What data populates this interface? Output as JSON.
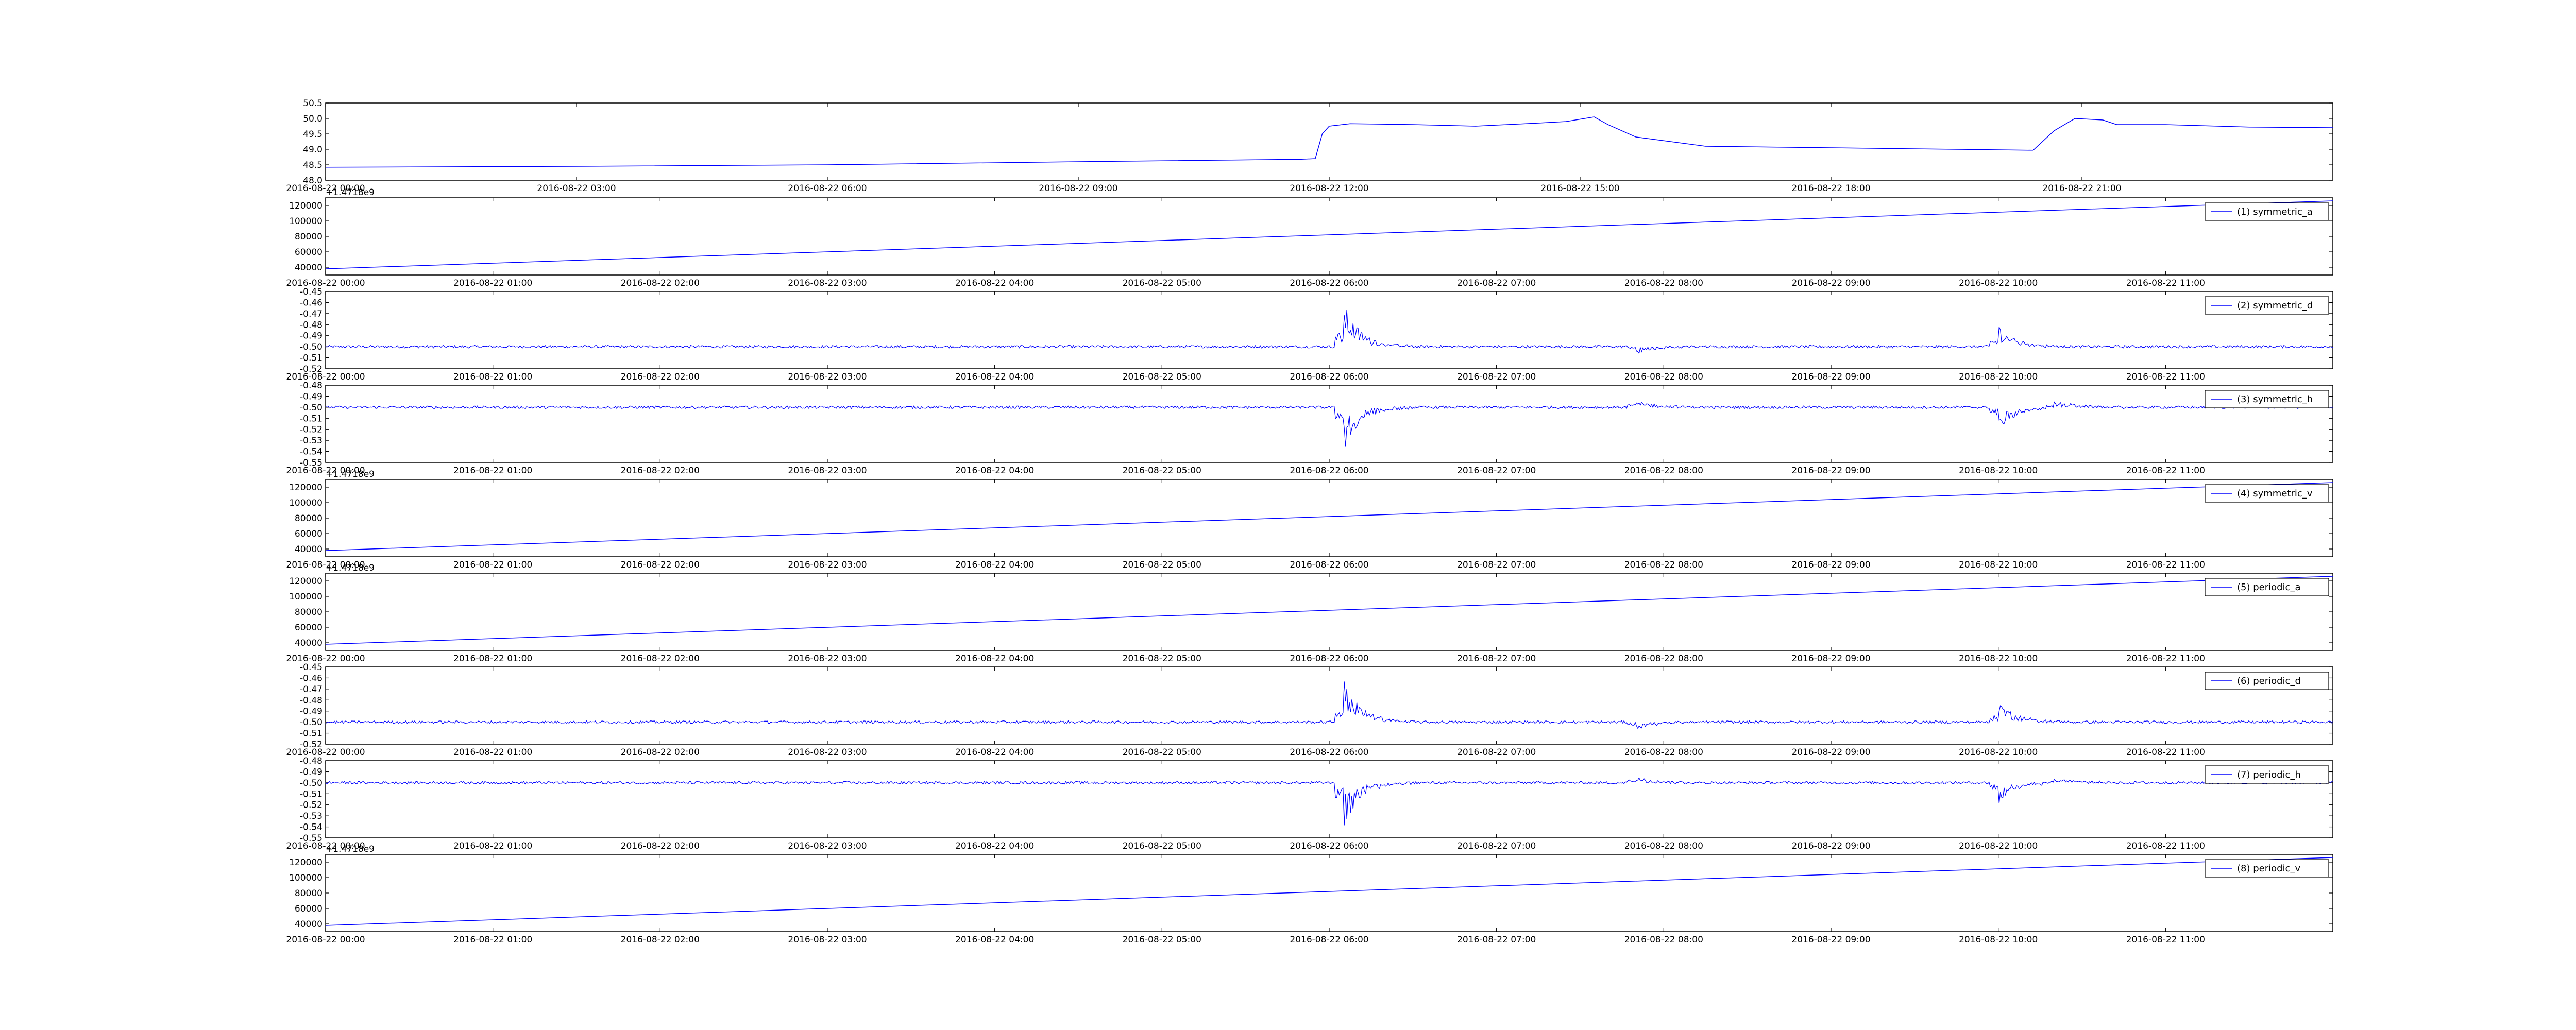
{
  "chart_data": [
    {
      "type": "line",
      "x_axis": {
        "type": "time",
        "range": [
          "2016-08-22 00:00",
          "2016-08-23 00:00"
        ],
        "ticks": [
          "2016-08-22 00:00",
          "2016-08-22 03:00",
          "2016-08-22 06:00",
          "2016-08-22 09:00",
          "2016-08-22 12:00",
          "2016-08-22 15:00",
          "2016-08-22 18:00",
          "2016-08-22 21:00"
        ]
      },
      "ylim": [
        48.0,
        50.5
      ],
      "yticks": [
        "48.0",
        "48.5",
        "49.0",
        "49.5",
        "50.0",
        "50.5"
      ],
      "color": "#0000ff",
      "legend": "",
      "series": [
        {
          "points": [
            [
              "2016-08-22 00:00",
              48.42
            ],
            [
              "2016-08-22 03:00",
              48.45
            ],
            [
              "2016-08-22 06:00",
              48.5
            ],
            [
              "2016-08-22 09:00",
              48.6
            ],
            [
              "2016-08-22 11:40",
              48.68
            ],
            [
              "2016-08-22 11:50",
              48.7
            ],
            [
              "2016-08-22 11:55",
              49.5
            ],
            [
              "2016-08-22 12:00",
              49.75
            ],
            [
              "2016-08-22 12:15",
              49.83
            ],
            [
              "2016-08-22 13:00",
              49.8
            ],
            [
              "2016-08-22 13:45",
              49.75
            ],
            [
              "2016-08-22 14:30",
              49.85
            ],
            [
              "2016-08-22 14:50",
              49.9
            ],
            [
              "2016-08-22 15:10",
              50.05
            ],
            [
              "2016-08-22 15:20",
              49.8
            ],
            [
              "2016-08-22 15:40",
              49.4
            ],
            [
              "2016-08-22 16:30",
              49.1
            ],
            [
              "2016-08-22 18:00",
              49.05
            ],
            [
              "2016-08-22 19:30",
              49.0
            ],
            [
              "2016-08-22 20:25",
              48.97
            ],
            [
              "2016-08-22 20:40",
              49.6
            ],
            [
              "2016-08-22 20:55",
              50.0
            ],
            [
              "2016-08-22 21:15",
              49.95
            ],
            [
              "2016-08-22 21:25",
              49.8
            ],
            [
              "2016-08-22 22:00",
              49.8
            ],
            [
              "2016-08-22 23:00",
              49.72
            ],
            [
              "2016-08-23 00:00",
              49.7
            ]
          ]
        }
      ]
    },
    {
      "type": "line",
      "x_axis": {
        "type": "time",
        "range": [
          "2016-08-22 00:00",
          "2016-08-22 12:00"
        ],
        "ticks": [
          "2016-08-22 00:00",
          "2016-08-22 01:00",
          "2016-08-22 02:00",
          "2016-08-22 03:00",
          "2016-08-22 04:00",
          "2016-08-22 05:00",
          "2016-08-22 06:00",
          "2016-08-22 07:00",
          "2016-08-22 08:00",
          "2016-08-22 09:00",
          "2016-08-22 10:00",
          "2016-08-22 11:00"
        ]
      },
      "axis_offset": "+1.4718e9",
      "ylim": [
        30000,
        130000
      ],
      "yticks": [
        "40000",
        "60000",
        "80000",
        "100000",
        "120000"
      ],
      "color": "#0000ff",
      "legend": "(1) symmetric_a",
      "series": [
        {
          "name": "(1) symmetric_a",
          "points": [
            [
              "2016-08-22 00:00",
              38000
            ],
            [
              "2016-08-22 12:00",
              126000
            ]
          ]
        }
      ]
    },
    {
      "type": "line",
      "x_axis": {
        "type": "time",
        "range": [
          "2016-08-22 00:00",
          "2016-08-22 12:00"
        ],
        "ticks": [
          "2016-08-22 00:00",
          "2016-08-22 01:00",
          "2016-08-22 02:00",
          "2016-08-22 03:00",
          "2016-08-22 04:00",
          "2016-08-22 05:00",
          "2016-08-22 06:00",
          "2016-08-22 07:00",
          "2016-08-22 08:00",
          "2016-08-22 09:00",
          "2016-08-22 10:00",
          "2016-08-22 11:00"
        ]
      },
      "ylim": [
        -0.52,
        -0.45
      ],
      "yticks": [
        "-0.52",
        "-0.51",
        "-0.50",
        "-0.49",
        "-0.48",
        "-0.47",
        "-0.46",
        "-0.45"
      ],
      "color": "#0000ff",
      "legend": "(2) symmetric_d",
      "series": [
        {
          "name": "(2) symmetric_d",
          "baseline": -0.5,
          "noise": 0.0012,
          "bursts": [
            {
              "at": "2016-08-22 06:05",
              "peak": -0.458,
              "dir": 1
            },
            {
              "at": "2016-08-22 07:50",
              "peak": -0.507,
              "dir": -1
            },
            {
              "at": "2016-08-22 10:00",
              "peak": -0.479,
              "dir": 1
            }
          ]
        }
      ]
    },
    {
      "type": "line",
      "x_axis": {
        "type": "time",
        "range": [
          "2016-08-22 00:00",
          "2016-08-22 12:00"
        ],
        "ticks": [
          "2016-08-22 00:00",
          "2016-08-22 01:00",
          "2016-08-22 02:00",
          "2016-08-22 03:00",
          "2016-08-22 04:00",
          "2016-08-22 05:00",
          "2016-08-22 06:00",
          "2016-08-22 07:00",
          "2016-08-22 08:00",
          "2016-08-22 09:00",
          "2016-08-22 10:00",
          "2016-08-22 11:00"
        ]
      },
      "ylim": [
        -0.55,
        -0.48
      ],
      "yticks": [
        "-0.55",
        "-0.54",
        "-0.53",
        "-0.52",
        "-0.51",
        "-0.50",
        "-0.49",
        "-0.48"
      ],
      "color": "#0000ff",
      "legend": "(3) symmetric_h",
      "series": [
        {
          "name": "(3) symmetric_h",
          "baseline": -0.5,
          "noise": 0.0012,
          "bursts": [
            {
              "at": "2016-08-22 06:05",
              "peak": -0.543,
              "dir": -1
            },
            {
              "at": "2016-08-22 07:50",
              "peak": -0.493,
              "dir": 1
            },
            {
              "at": "2016-08-22 10:00",
              "peak": -0.522,
              "dir": -1
            },
            {
              "at": "2016-08-22 10:20",
              "peak": -0.493,
              "dir": 1
            }
          ]
        }
      ]
    },
    {
      "type": "line",
      "x_axis": {
        "type": "time",
        "range": [
          "2016-08-22 00:00",
          "2016-08-22 12:00"
        ],
        "ticks": [
          "2016-08-22 00:00",
          "2016-08-22 01:00",
          "2016-08-22 02:00",
          "2016-08-22 03:00",
          "2016-08-22 04:00",
          "2016-08-22 05:00",
          "2016-08-22 06:00",
          "2016-08-22 07:00",
          "2016-08-22 08:00",
          "2016-08-22 09:00",
          "2016-08-22 10:00",
          "2016-08-22 11:00"
        ]
      },
      "axis_offset": "+1.4718e9",
      "ylim": [
        30000,
        130000
      ],
      "yticks": [
        "40000",
        "60000",
        "80000",
        "100000",
        "120000"
      ],
      "color": "#0000ff",
      "legend": "(4) symmetric_v",
      "series": [
        {
          "name": "(4) symmetric_v",
          "points": [
            [
              "2016-08-22 00:00",
              38000
            ],
            [
              "2016-08-22 12:00",
              126000
            ]
          ]
        }
      ]
    },
    {
      "type": "line",
      "x_axis": {
        "type": "time",
        "range": [
          "2016-08-22 00:00",
          "2016-08-22 12:00"
        ],
        "ticks": [
          "2016-08-22 00:00",
          "2016-08-22 01:00",
          "2016-08-22 02:00",
          "2016-08-22 03:00",
          "2016-08-22 04:00",
          "2016-08-22 05:00",
          "2016-08-22 06:00",
          "2016-08-22 07:00",
          "2016-08-22 08:00",
          "2016-08-22 09:00",
          "2016-08-22 10:00",
          "2016-08-22 11:00"
        ]
      },
      "axis_offset": "+1.4718e9",
      "ylim": [
        30000,
        130000
      ],
      "yticks": [
        "40000",
        "60000",
        "80000",
        "100000",
        "120000"
      ],
      "color": "#0000ff",
      "legend": "(5) periodic_a",
      "series": [
        {
          "name": "(5) periodic_a",
          "points": [
            [
              "2016-08-22 00:00",
              38000
            ],
            [
              "2016-08-22 12:00",
              126000
            ]
          ]
        }
      ]
    },
    {
      "type": "line",
      "x_axis": {
        "type": "time",
        "range": [
          "2016-08-22 00:00",
          "2016-08-22 12:00"
        ],
        "ticks": [
          "2016-08-22 00:00",
          "2016-08-22 01:00",
          "2016-08-22 02:00",
          "2016-08-22 03:00",
          "2016-08-22 04:00",
          "2016-08-22 05:00",
          "2016-08-22 06:00",
          "2016-08-22 07:00",
          "2016-08-22 08:00",
          "2016-08-22 09:00",
          "2016-08-22 10:00",
          "2016-08-22 11:00"
        ]
      },
      "ylim": [
        -0.52,
        -0.45
      ],
      "yticks": [
        "-0.52",
        "-0.51",
        "-0.50",
        "-0.49",
        "-0.48",
        "-0.47",
        "-0.46",
        "-0.45"
      ],
      "color": "#0000ff",
      "legend": "(6) periodic_d",
      "series": [
        {
          "name": "(6) periodic_d",
          "baseline": -0.5,
          "noise": 0.0012,
          "bursts": [
            {
              "at": "2016-08-22 06:05",
              "peak": -0.458,
              "dir": 1
            },
            {
              "at": "2016-08-22 07:50",
              "peak": -0.507,
              "dir": -1
            },
            {
              "at": "2016-08-22 10:00",
              "peak": -0.479,
              "dir": 1
            }
          ]
        }
      ]
    },
    {
      "type": "line",
      "x_axis": {
        "type": "time",
        "range": [
          "2016-08-22 00:00",
          "2016-08-22 12:00"
        ],
        "ticks": [
          "2016-08-22 00:00",
          "2016-08-22 01:00",
          "2016-08-22 02:00",
          "2016-08-22 03:00",
          "2016-08-22 04:00",
          "2016-08-22 05:00",
          "2016-08-22 06:00",
          "2016-08-22 07:00",
          "2016-08-22 08:00",
          "2016-08-22 09:00",
          "2016-08-22 10:00",
          "2016-08-22 11:00"
        ]
      },
      "ylim": [
        -0.55,
        -0.48
      ],
      "yticks": [
        "-0.55",
        "-0.54",
        "-0.53",
        "-0.52",
        "-0.51",
        "-0.50",
        "-0.49",
        "-0.48"
      ],
      "color": "#0000ff",
      "legend": "(7) periodic_h",
      "series": [
        {
          "name": "(7) periodic_h",
          "baseline": -0.5,
          "noise": 0.0012,
          "bursts": [
            {
              "at": "2016-08-22 06:05",
              "peak": -0.543,
              "dir": -1
            },
            {
              "at": "2016-08-22 07:50",
              "peak": -0.493,
              "dir": 1
            },
            {
              "at": "2016-08-22 10:00",
              "peak": -0.522,
              "dir": -1
            },
            {
              "at": "2016-08-22 10:20",
              "peak": -0.493,
              "dir": 1
            }
          ]
        }
      ]
    },
    {
      "type": "line",
      "x_axis": {
        "type": "time",
        "range": [
          "2016-08-22 00:00",
          "2016-08-22 12:00"
        ],
        "ticks": [
          "2016-08-22 00:00",
          "2016-08-22 01:00",
          "2016-08-22 02:00",
          "2016-08-22 03:00",
          "2016-08-22 04:00",
          "2016-08-22 05:00",
          "2016-08-22 06:00",
          "2016-08-22 07:00",
          "2016-08-22 08:00",
          "2016-08-22 09:00",
          "2016-08-22 10:00",
          "2016-08-22 11:00"
        ]
      },
      "axis_offset": "+1.4718e9",
      "ylim": [
        30000,
        130000
      ],
      "yticks": [
        "40000",
        "60000",
        "80000",
        "100000",
        "120000"
      ],
      "color": "#0000ff",
      "legend": "(8) periodic_v",
      "series": [
        {
          "name": "(8) periodic_v",
          "points": [
            [
              "2016-08-22 00:00",
              38000
            ],
            [
              "2016-08-22 12:00",
              126000
            ]
          ]
        }
      ]
    }
  ]
}
